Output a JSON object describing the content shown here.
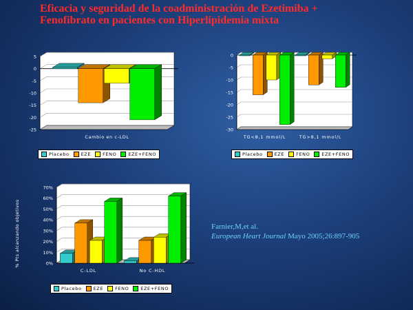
{
  "title": [
    "Eficacia y seguridad de la coadministración de Ezetimiba +",
    "Fenofibrato en pacientes con Hiperlipidemia mixta"
  ],
  "colors": {
    "Placebo": "#33cccc",
    "EZE": "#ff9900",
    "FENO": "#ffff00",
    "EZE+FENO": "#00ee00"
  },
  "legend": [
    "Placebo",
    "EZE",
    "FENO",
    "EZE+FENO"
  ],
  "reference": {
    "authors": "Farnier,M,et al.",
    "journal": "European Heart Journal",
    "citation": " Mayo 2005;26:897-905"
  },
  "chart_data": [
    {
      "type": "bar",
      "xlabel": "Cambio en c-LDL",
      "categories": [
        ""
      ],
      "ylim": [
        -25,
        5
      ],
      "yticks": [
        "5",
        "0",
        "-5",
        "-10",
        "-15",
        "-20",
        "-25"
      ],
      "grid": true,
      "series": [
        {
          "name": "Placebo",
          "values": [
            0.5
          ]
        },
        {
          "name": "EZE",
          "values": [
            -14
          ]
        },
        {
          "name": "FENO",
          "values": [
            -6
          ]
        },
        {
          "name": "EZE+FENO",
          "values": [
            -21
          ]
        }
      ]
    },
    {
      "type": "bar",
      "categories": [
        "TG<8,1 mmol/L",
        "TG>8,1 mmol/L"
      ],
      "ylim": [
        -30,
        0
      ],
      "yticks": [
        "0",
        "-5",
        "-10",
        "-15",
        "-20",
        "-25",
        "-30"
      ],
      "grid": true,
      "series": [
        {
          "name": "Placebo",
          "values": [
            0,
            0
          ]
        },
        {
          "name": "EZE",
          "values": [
            -16,
            -12
          ]
        },
        {
          "name": "FENO",
          "values": [
            -10,
            -1.5
          ]
        },
        {
          "name": "EZE+FENO",
          "values": [
            -28,
            -13
          ]
        }
      ]
    },
    {
      "type": "bar",
      "ylabel": "% Pts alcanzando objetivos",
      "categories": [
        "C-LDL",
        "No C-HDL"
      ],
      "ylim": [
        0,
        70
      ],
      "yticks": [
        "70%",
        "60%",
        "50%",
        "40%",
        "30%",
        "20%",
        "10%",
        "0%"
      ],
      "grid": true,
      "series": [
        {
          "name": "Placebo",
          "values": [
            9,
            2
          ]
        },
        {
          "name": "EZE",
          "values": [
            37,
            21
          ]
        },
        {
          "name": "FENO",
          "values": [
            21,
            24
          ]
        },
        {
          "name": "EZE+FENO",
          "values": [
            57,
            62
          ]
        }
      ]
    }
  ]
}
